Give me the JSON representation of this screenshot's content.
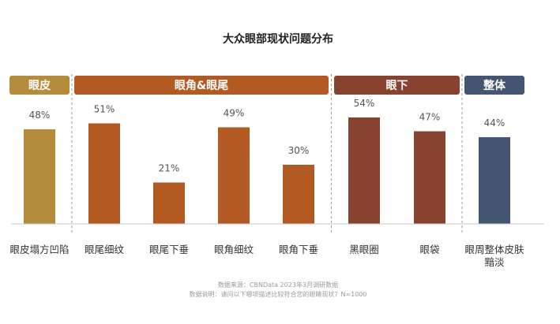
{
  "chart_data": {
    "type": "bar",
    "title": "大众眼部现状问题分布",
    "ylim": [
      0,
      60
    ],
    "grid": false,
    "groups": [
      {
        "label": "眼皮",
        "color": "#b58b3c",
        "indices": [
          0
        ]
      },
      {
        "label": "眼角&眼尾",
        "color": "#b25a22",
        "indices": [
          1,
          2,
          3,
          4
        ]
      },
      {
        "label": "眼下",
        "color": "#874230",
        "indices": [
          5,
          6
        ]
      },
      {
        "label": "整体",
        "color": "#435571",
        "indices": [
          7
        ]
      }
    ],
    "categories": [
      "眼皮塌方凹陷",
      "眼尾细纹",
      "眼尾下垂",
      "眼角细纹",
      "眼角下垂",
      "黑眼圈",
      "眼袋",
      "眼周整体皮肤黯淡"
    ],
    "category_lines": [
      [
        "眼皮塌方凹陷"
      ],
      [
        "眼尾细纹"
      ],
      [
        "眼尾下垂"
      ],
      [
        "眼角细纹"
      ],
      [
        "眼角下垂"
      ],
      [
        "黑眼圈"
      ],
      [
        "眼袋"
      ],
      [
        "眼周整体皮肤",
        "黯淡"
      ]
    ],
    "values": [
      48,
      51,
      21,
      49,
      30,
      54,
      47,
      44
    ],
    "value_labels": [
      "48%",
      "51%",
      "21%",
      "49%",
      "30%",
      "54%",
      "47%",
      "44%"
    ],
    "bar_colors": [
      "#b58b3c",
      "#b25a22",
      "#b25a22",
      "#b25a22",
      "#b25a22",
      "#874230",
      "#874230",
      "#435571"
    ],
    "source_lines": [
      "数据来源：CBNData 2023年3月调研数据",
      "数据说明：请问以下哪项描述比较符合您的眼睛现状？N=1000"
    ]
  }
}
